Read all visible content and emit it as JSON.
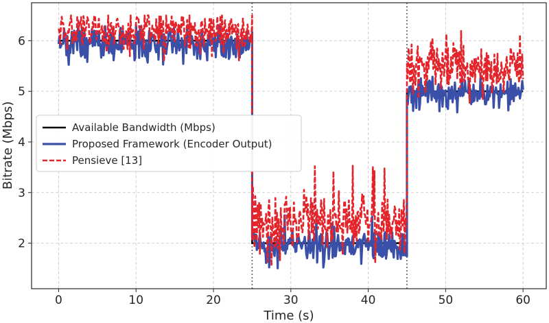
{
  "chart_data": {
    "type": "line",
    "title": "",
    "xlabel": "Time (s)",
    "ylabel": "Bitrate (Mbps)",
    "xlim": [
      -3.5,
      63
    ],
    "ylim": [
      1.1,
      6.75
    ],
    "xticks": [
      0,
      10,
      20,
      30,
      40,
      50,
      60
    ],
    "yticks": [
      2,
      3,
      4,
      5,
      6
    ],
    "grid": true,
    "legend_position": "center-left",
    "vlines": [
      25,
      45
    ],
    "series": [
      {
        "name": "Available Bandwidth (Mbps)",
        "color": "#000000",
        "style": "solid",
        "x": [
          0,
          25,
          25,
          45,
          45,
          60
        ],
        "y": [
          6,
          6,
          2,
          2,
          5,
          5
        ]
      },
      {
        "name": "Proposed Framework (Encoder Output)",
        "color": "#3a4fa8",
        "style": "solid",
        "segments": [
          {
            "x_start": 0,
            "x_end": 25,
            "mean": 5.95,
            "amplitude": 0.25,
            "min": 5.4,
            "max": 6.3
          },
          {
            "x_start": 25,
            "x_end": 45,
            "mean": 1.95,
            "amplitude": 0.25,
            "min": 1.5,
            "max": 2.55
          },
          {
            "x_start": 45,
            "x_end": 60,
            "mean": 4.98,
            "amplitude": 0.18,
            "min": 4.55,
            "max": 5.3
          }
        ]
      },
      {
        "name": "Pensieve [13]",
        "color": "#e3242b",
        "style": "dashed",
        "segments": [
          {
            "x_start": 0,
            "x_end": 25,
            "mean": 6.2,
            "amplitude": 0.3,
            "min": 5.55,
            "max": 6.5
          },
          {
            "x_start": 25,
            "x_end": 45,
            "mean": 2.4,
            "amplitude": 0.4,
            "min": 1.55,
            "max": 3.55
          },
          {
            "x_start": 45,
            "x_end": 60,
            "mean": 5.5,
            "amplitude": 0.4,
            "min": 4.75,
            "max": 6.5
          }
        ]
      }
    ]
  }
}
